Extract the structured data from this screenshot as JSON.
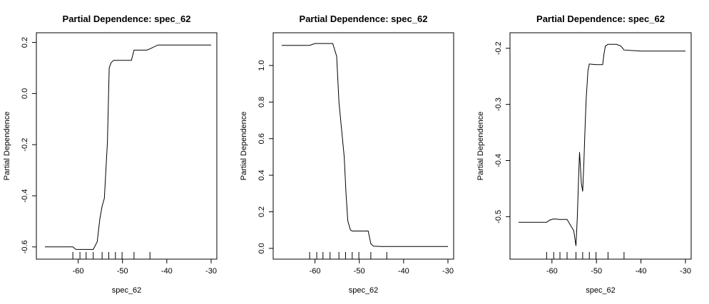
{
  "chart_data": [
    {
      "type": "line",
      "title": "Partial Dependence: spec_62",
      "xlabel": "spec_62",
      "ylabel": "Partial Dependence",
      "xlim": [
        -67.5,
        -30
      ],
      "ylim": [
        -0.62,
        0.21
      ],
      "xticks": [
        -60,
        -50,
        -40,
        -30
      ],
      "yticks": [
        -0.6,
        -0.4,
        -0.2,
        0.0,
        0.2
      ],
      "ytick_labels": [
        "-0.6",
        "-0.4",
        "-0.2",
        "0.0",
        "0.2"
      ],
      "rug": [
        -61.2,
        -59.6,
        -58.2,
        -56.6,
        -54.6,
        -53.1,
        -51.6,
        -50.1,
        -47.4,
        -43.8
      ],
      "x": [
        -67.5,
        -61.2,
        -60.5,
        -59.6,
        -56.6,
        -55.7,
        -55.1,
        -54.6,
        -54.1,
        -53.4,
        -53.0,
        -52.6,
        -52.0,
        -51.6,
        -50.1,
        -48.6,
        -48.0,
        -47.4,
        -46.2,
        -44.5,
        -43.8,
        -42.0,
        -41.0,
        -40.0,
        -30.0
      ],
      "y": [
        -0.6,
        -0.6,
        -0.61,
        -0.61,
        -0.61,
        -0.58,
        -0.49,
        -0.44,
        -0.41,
        -0.19,
        0.1,
        0.12,
        0.13,
        0.13,
        0.13,
        0.13,
        0.13,
        0.17,
        0.17,
        0.17,
        0.175,
        0.19,
        0.19,
        0.19,
        0.19
      ]
    },
    {
      "type": "line",
      "title": "Partial Dependence: spec_62",
      "xlabel": "spec_62",
      "ylabel": "Partial Dependence",
      "xlim": [
        -67.5,
        -30
      ],
      "ylim": [
        -0.02,
        1.14
      ],
      "xticks": [
        -60,
        -50,
        -40,
        -30
      ],
      "yticks": [
        0.0,
        0.2,
        0.4,
        0.6,
        0.8,
        1.0
      ],
      "ytick_labels": [
        "0.0",
        "0.2",
        "0.4",
        "0.6",
        "0.8",
        "1.0"
      ],
      "rug": [
        -61.2,
        -59.6,
        -58.2,
        -56.6,
        -54.6,
        -53.1,
        -51.6,
        -50.1,
        -47.4,
        -43.8
      ],
      "x": [
        -67.5,
        -61.2,
        -60.0,
        -56.6,
        -56.0,
        -55.1,
        -54.6,
        -54.0,
        -53.4,
        -53.0,
        -52.6,
        -52.0,
        -51.6,
        -50.1,
        -48.6,
        -48.0,
        -47.4,
        -46.8,
        -45.0,
        -43.8,
        -40.0,
        -30.0
      ],
      "y": [
        1.11,
        1.11,
        1.12,
        1.12,
        1.12,
        1.05,
        0.8,
        0.65,
        0.5,
        0.3,
        0.15,
        0.1,
        0.095,
        0.095,
        0.095,
        0.095,
        0.025,
        0.012,
        0.01,
        0.01,
        0.01,
        0.01
      ]
    },
    {
      "type": "line",
      "title": "Partial Dependence: spec_62",
      "xlabel": "spec_62",
      "ylabel": "Partial Dependence",
      "xlim": [
        -67.5,
        -30
      ],
      "ylim": [
        -0.563,
        -0.185
      ],
      "xticks": [
        -60,
        -50,
        -40,
        -30
      ],
      "yticks": [
        -0.5,
        -0.4,
        -0.3,
        -0.2
      ],
      "ytick_labels": [
        "-0.5",
        "-0.4",
        "-0.3",
        "-0.2"
      ],
      "rug": [
        -61.2,
        -59.6,
        -58.2,
        -56.6,
        -54.6,
        -53.1,
        -51.6,
        -50.1,
        -47.4,
        -43.8
      ],
      "x": [
        -67.5,
        -61.2,
        -60.5,
        -59.6,
        -58.2,
        -56.6,
        -55.1,
        -54.6,
        -54.3,
        -54.0,
        -53.8,
        -53.6,
        -53.4,
        -53.1,
        -52.8,
        -52.6,
        -52.3,
        -51.9,
        -51.6,
        -50.1,
        -48.6,
        -48.3,
        -48.0,
        -47.4,
        -45.5,
        -44.5,
        -43.8,
        -40.0,
        -30.0
      ],
      "y": [
        -0.51,
        -0.51,
        -0.506,
        -0.504,
        -0.505,
        -0.505,
        -0.525,
        -0.552,
        -0.5,
        -0.43,
        -0.385,
        -0.41,
        -0.44,
        -0.455,
        -0.4,
        -0.35,
        -0.29,
        -0.24,
        -0.228,
        -0.229,
        -0.229,
        -0.21,
        -0.196,
        -0.193,
        -0.193,
        -0.196,
        -0.203,
        -0.205,
        -0.205
      ]
    }
  ]
}
